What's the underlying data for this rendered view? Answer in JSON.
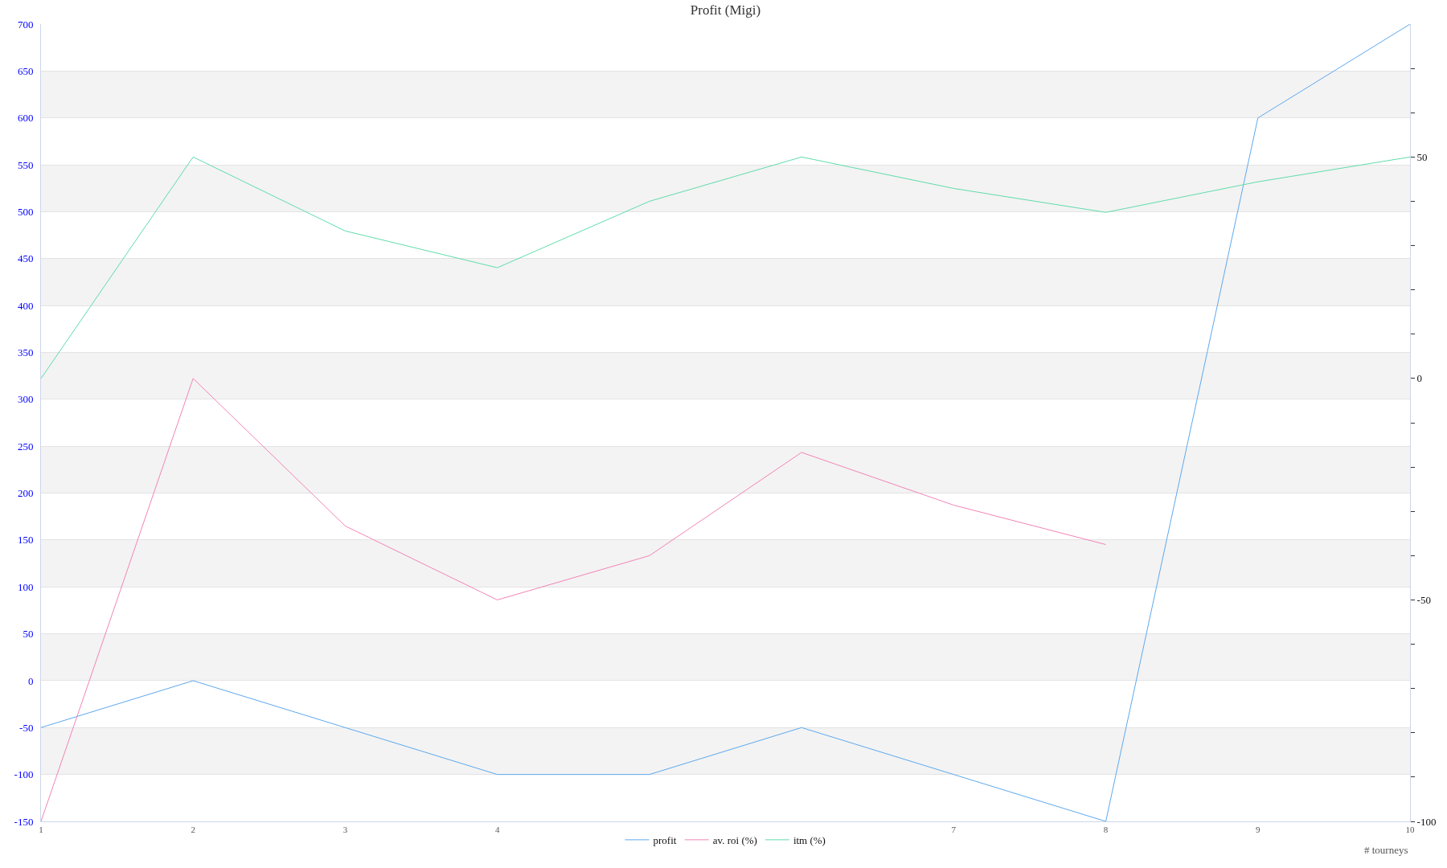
{
  "chart_data": {
    "type": "line",
    "title": "Profit (Migi)",
    "xlabel": "# tourneys",
    "x": [
      1,
      2,
      3,
      4,
      5,
      6,
      7,
      8,
      9,
      10
    ],
    "xlim": [
      1,
      10
    ],
    "xticks": [
      1,
      2,
      3,
      4,
      7,
      8,
      9,
      10
    ],
    "ylim": [
      -150,
      700
    ],
    "yticks": [
      -150,
      -100,
      -50,
      0,
      50,
      100,
      150,
      200,
      250,
      300,
      350,
      400,
      450,
      500,
      550,
      600,
      650,
      700
    ],
    "y2lim": [
      -100,
      80
    ],
    "y2ticks": [
      -100,
      {
        "value": -90,
        "label": null
      },
      {
        "value": -80,
        "label": null
      },
      {
        "value": -70,
        "label": null
      },
      {
        "value": -60,
        "label": null
      },
      -50,
      {
        "value": -40,
        "label": null
      },
      {
        "value": -30,
        "label": null
      },
      {
        "value": -20,
        "label": null
      },
      {
        "value": -10,
        "label": null
      },
      0,
      {
        "value": 10,
        "label": null
      },
      {
        "value": 20,
        "label": null
      },
      {
        "value": 30,
        "label": null
      },
      {
        "value": 40,
        "label": null
      },
      50,
      {
        "value": 60,
        "label": null
      },
      {
        "value": 70,
        "label": null
      }
    ],
    "series": [
      {
        "name": "profit",
        "color": "#5ea8ee",
        "values": [
          -50,
          0,
          -50,
          -100,
          -100,
          -50,
          -100,
          -150,
          600,
          700
        ]
      },
      {
        "name": "av. roi (%)",
        "color": "#f284b6",
        "axis": "y2",
        "values": [
          -100,
          0,
          -33.3,
          -50,
          -40,
          -16.7,
          -28.6,
          -37.5,
          null,
          null
        ]
      },
      {
        "name": "itm (%)",
        "color": "#5fdcab",
        "axis": "y2",
        "values": [
          0,
          50,
          33.3,
          25,
          40,
          50,
          42.9,
          37.5,
          44.4,
          50
        ]
      }
    ],
    "bands": [
      {
        "axis": "y",
        "from": 600,
        "to": 650,
        "color": "#f3f3f3"
      },
      {
        "axis": "y",
        "from": 500,
        "to": 550,
        "color": "#f3f3f3"
      },
      {
        "axis": "y",
        "from": 400,
        "to": 450,
        "color": "#f3f3f3"
      },
      {
        "axis": "y",
        "from": 300,
        "to": 350,
        "color": "#f3f3f3"
      },
      {
        "axis": "y",
        "from": 200,
        "to": 250,
        "color": "#f3f3f3"
      },
      {
        "axis": "y",
        "from": 100,
        "to": 150,
        "color": "#f3f3f3"
      },
      {
        "axis": "y",
        "from": 0,
        "to": 50,
        "color": "#f3f3f3"
      },
      {
        "axis": "y",
        "from": -100,
        "to": -50,
        "color": "#f3f3f3"
      }
    ],
    "grid": "y",
    "legend": "bottom",
    "marker": "none",
    "line_style": "solid"
  }
}
